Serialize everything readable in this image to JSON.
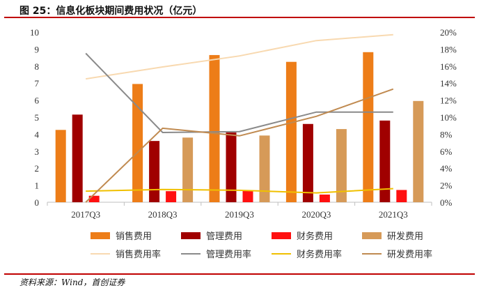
{
  "title": "图 25：信息化板块期间费用状况（亿元）",
  "source": "资料来源：Wind，首创证券",
  "chart_data": {
    "type": "bar",
    "categories": [
      "2017Q3",
      "2018Q3",
      "2019Q3",
      "2020Q3",
      "2021Q3"
    ],
    "bar_series": [
      {
        "name": "销售费用",
        "color": "#ed7d18",
        "values": [
          4.25,
          6.95,
          8.65,
          8.25,
          8.82
        ]
      },
      {
        "name": "管理费用",
        "color": "#a00000",
        "values": [
          5.15,
          3.6,
          4.1,
          4.6,
          4.8
        ]
      },
      {
        "name": "财务费用",
        "color": "#ff1010",
        "values": [
          0.38,
          0.65,
          0.7,
          0.45,
          0.72
        ]
      },
      {
        "name": "研发费用",
        "color": "#d69a58",
        "values": [
          null,
          3.8,
          3.92,
          4.3,
          5.95
        ]
      }
    ],
    "line_series": [
      {
        "name": "销售费用率",
        "color": "#f8d9b0",
        "values": [
          14.5,
          15.9,
          17.2,
          19.0,
          19.7
        ]
      },
      {
        "name": "管理费用率",
        "color": "#8a8a8a",
        "values": [
          17.5,
          8.2,
          8.3,
          10.6,
          10.6
        ]
      },
      {
        "name": "财务费用率",
        "color": "#f0c000",
        "values": [
          1.3,
          1.5,
          1.4,
          1.1,
          1.6
        ]
      },
      {
        "name": "研发费用率",
        "color": "#c08a50",
        "values": [
          0,
          8.7,
          7.8,
          10.1,
          13.3
        ]
      }
    ],
    "ylim": [
      0,
      10
    ],
    "y_ticks": [
      "0",
      "1",
      "2",
      "3",
      "4",
      "5",
      "6",
      "7",
      "8",
      "9",
      "10"
    ],
    "y2lim": [
      0,
      20
    ],
    "y2_ticks": [
      "0%",
      "2%",
      "4%",
      "6%",
      "8%",
      "10%",
      "12%",
      "14%",
      "16%",
      "18%",
      "20%"
    ],
    "grid": false,
    "legend_position": "bottom"
  }
}
